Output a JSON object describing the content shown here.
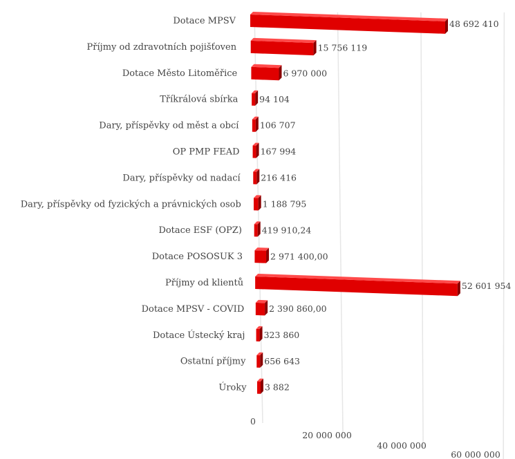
{
  "chart_data": {
    "type": "bar",
    "orientation": "horizontal",
    "style": "3d",
    "categories": [
      "Dotace MPSV",
      "Příjmy od zdravotních pojišťoven",
      "Dotace Město Litoměřice",
      "Tříkrálová sbírka",
      "Dary, příspěvky  od měst a obcí",
      "OP PMP FEAD",
      "Dary, příspěvky  od nadací",
      "Dary, příspěvky od fyzických a právnických osob",
      "Dotace ESF (OPZ)",
      "Dotace POSOSUK 3",
      "Příjmy od klientů",
      "Dotace MPSV - COVID",
      "Dotace Ústecký kraj",
      "Ostatní příjmy",
      "Úroky"
    ],
    "values": [
      48692410,
      15756119,
      6970000,
      94104,
      106707,
      167994,
      216416,
      1188795,
      419910.24,
      2971400,
      52601954,
      2390860,
      323860,
      656643,
      3882
    ],
    "value_labels": [
      "48 692 410",
      "15 756 119",
      "6 970 000",
      "94 104",
      "106 707",
      "167 994",
      "216 416",
      "1 188 795",
      "419 910,24",
      "2 971 400,00",
      "52 601 954",
      "2 390 860,00",
      "323 860",
      "656 643",
      "3 882"
    ],
    "x_ticks": [
      0,
      20000000,
      40000000,
      60000000
    ],
    "x_tick_labels": [
      "0",
      "20 000 000",
      "40 000 000",
      "60 000 000"
    ],
    "xlim": [
      0,
      60000000
    ],
    "grid": true,
    "legend": "none",
    "bar_color": "#e00000",
    "bar_top_color": "#ff4a4a",
    "bar_end_color": "#8a0000",
    "title": "",
    "xlabel": "",
    "ylabel": ""
  }
}
